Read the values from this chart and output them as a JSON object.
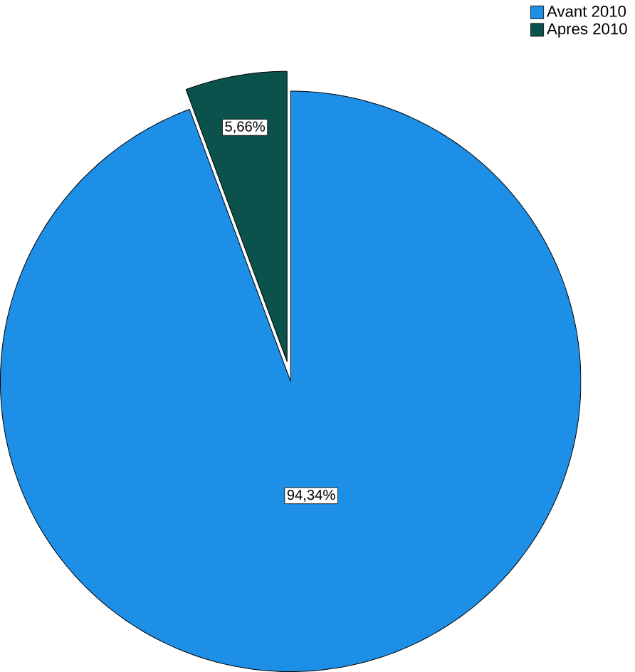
{
  "chart_data": {
    "type": "pie",
    "categories": [
      "Avant 2010",
      "Apres 2010"
    ],
    "values": [
      94.34,
      5.66
    ],
    "colors": [
      "#1e8fe6",
      "#0b524d"
    ],
    "value_labels": [
      "94,34%",
      "5,66%"
    ],
    "legend": "top right"
  }
}
